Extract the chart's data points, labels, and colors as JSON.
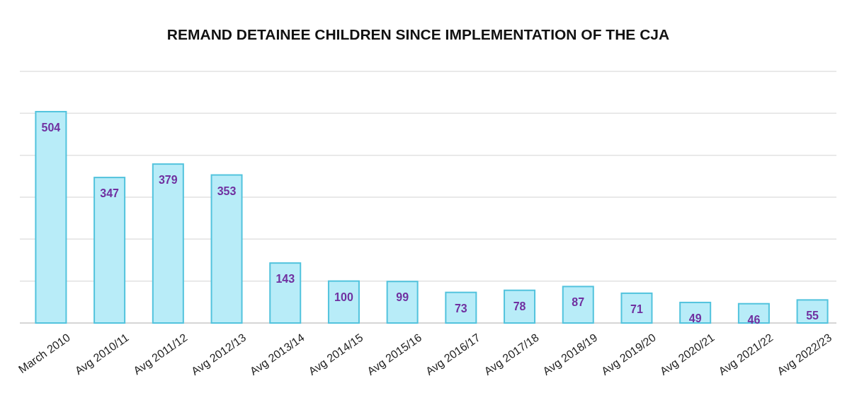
{
  "chart_data": {
    "type": "bar",
    "title": "REMAND DETAINEE CHILDREN SINCE IMPLEMENTATION OF THE CJA",
    "categories": [
      "March 2010",
      "Avg 2010/11",
      "Avg 2011/12",
      "Avg 2012/13",
      "Avg 2013/14",
      "Avg 2014/15",
      "Avg 2015/16",
      "Avg 2016/17",
      "Avg 2017/18",
      "Avg 2018/19",
      "Avg 2019/20",
      "Avg 2020/21",
      "Avg 2021/22",
      "Avg 2022/23"
    ],
    "values": [
      504,
      347,
      379,
      353,
      143,
      100,
      99,
      73,
      78,
      87,
      71,
      49,
      46,
      55
    ],
    "color": "#b8ecf8",
    "ylim": [
      0,
      600
    ],
    "yticks": [
      {
        "value": 0,
        "label": null
      },
      {
        "value": 100,
        "label": null
      },
      {
        "value": 200,
        "label": null
      },
      {
        "value": 300,
        "label": null
      },
      {
        "value": 400,
        "label": null
      },
      {
        "value": 500,
        "label": null
      },
      {
        "value": 600,
        "label": null
      }
    ],
    "grid": "y",
    "tick_labels": "x",
    "data_labels": true
  }
}
